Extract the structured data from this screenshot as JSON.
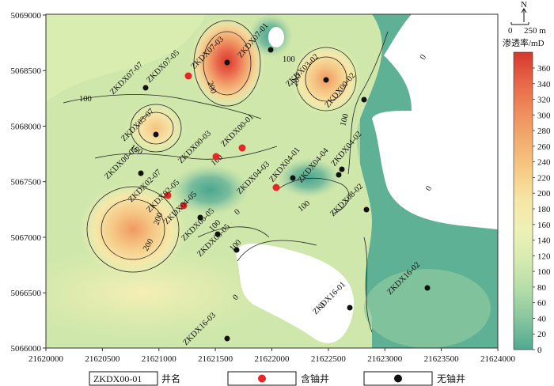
{
  "axes": {
    "x_ticks": [
      "21620000",
      "21620500",
      "21621000",
      "21621500",
      "21622000",
      "21622500",
      "21623000",
      "21623500",
      "21624000"
    ],
    "y_ticks": [
      "5069000",
      "5068500",
      "5068000",
      "5067500",
      "5067000",
      "5066500",
      "5066000"
    ]
  },
  "north_arrow": {
    "letter": "N"
  },
  "scale_bar": {
    "start": "0",
    "end": "250 m"
  },
  "colorbar": {
    "title": "渗透率/mD",
    "labels": [
      "360",
      "340",
      "320",
      "300",
      "280",
      "260",
      "240",
      "220",
      "200",
      "180",
      "160",
      "140",
      "120",
      "100",
      "80",
      "60",
      "40",
      "20",
      "0"
    ]
  },
  "contour_labels": [
    {
      "id": "c100a",
      "text": "100"
    },
    {
      "id": "c200a",
      "text": "200"
    },
    {
      "id": "c100b",
      "text": "100"
    },
    {
      "id": "c200b",
      "text": "200"
    },
    {
      "id": "c100c",
      "text": "100"
    },
    {
      "id": "c0a",
      "text": "0"
    },
    {
      "id": "c100d",
      "text": "100"
    },
    {
      "id": "c200c",
      "text": "200"
    },
    {
      "id": "c0b",
      "text": "0"
    },
    {
      "id": "c100e",
      "text": "100"
    },
    {
      "id": "c100f",
      "text": "100"
    },
    {
      "id": "c0c",
      "text": "0"
    },
    {
      "id": "c0d",
      "text": "0"
    },
    {
      "id": "c200d",
      "text": "200"
    },
    {
      "id": "c100g",
      "text": "100"
    },
    {
      "id": "c100h",
      "text": "100"
    },
    {
      "id": "c0e",
      "text": "0"
    }
  ],
  "wells": [
    {
      "id": "ZKDX07-03",
      "type": "no-uranium"
    },
    {
      "id": "ZKDX07-01",
      "type": "no-uranium"
    },
    {
      "id": "ZKDX03-02",
      "type": "no-uranium"
    },
    {
      "id": "ZKDX07-07",
      "type": "no-uranium"
    },
    {
      "id": "ZKDX07-05",
      "type": "uranium"
    },
    {
      "id": "ZKDX00-02",
      "type": "no-uranium"
    },
    {
      "id": "ZKDX03-07",
      "type": "no-uranium"
    },
    {
      "id": "ZKDX00-03",
      "type": "uranium"
    },
    {
      "id": "ZKDX00-01",
      "type": "uranium"
    },
    {
      "id": "ZKDX04-01",
      "type": "no-uranium"
    },
    {
      "id": "ZKDX04-04",
      "type": "no-uranium"
    },
    {
      "id": "ZKDX04-02",
      "type": "no-uranium"
    },
    {
      "id": "ZKDX00-05",
      "type": "no-uranium"
    },
    {
      "id": "ZKDX02-07",
      "type": "uranium"
    },
    {
      "id": "ZKDX04-03",
      "type": "uranium"
    },
    {
      "id": "ZKDX02-05",
      "type": "uranium"
    },
    {
      "id": "ZKDX04-05",
      "type": "no-uranium"
    },
    {
      "id": "ZKDX06-05",
      "type": "no-uranium"
    },
    {
      "id": "ZKDX08-05",
      "type": "no-uranium"
    },
    {
      "id": "ZKDX08-02",
      "type": "no-uranium"
    },
    {
      "id": "ZKDX16-01",
      "type": "no-uranium"
    },
    {
      "id": "ZKDX16-02",
      "type": "no-uranium"
    },
    {
      "id": "ZKDX16-03",
      "type": "no-uranium"
    }
  ],
  "legend": {
    "well_name_sample": "ZKDX00-01",
    "well_name_label": "井名",
    "uranium_label": "含铀井",
    "no_uranium_label": "无铀井"
  },
  "colors": {
    "uranium_well": "#e8262a",
    "no_uranium_well": "#111111"
  }
}
